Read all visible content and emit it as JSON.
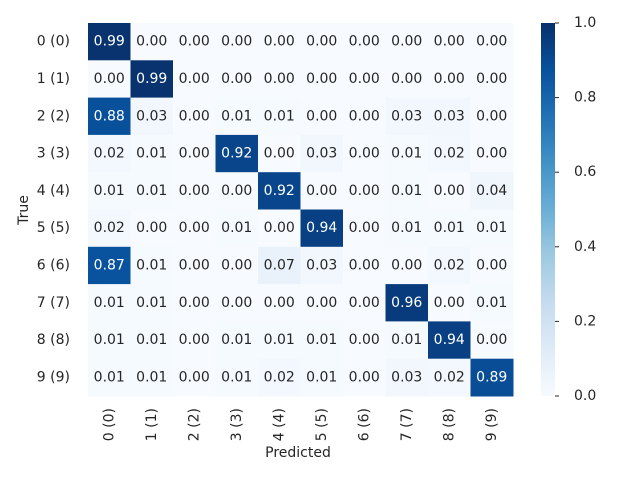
{
  "chart_data": {
    "type": "heatmap",
    "x_categories": [
      "0 (0)",
      "1 (1)",
      "2 (2)",
      "3 (3)",
      "4 (4)",
      "5 (5)",
      "6 (6)",
      "7 (7)",
      "8 (8)",
      "9 (9)"
    ],
    "y_categories": [
      "0 (0)",
      "1 (1)",
      "2 (2)",
      "3 (3)",
      "4 (4)",
      "5 (5)",
      "6 (6)",
      "7 (7)",
      "8 (8)",
      "9 (9)"
    ],
    "xlabel": "Predicted",
    "ylabel": "True",
    "values": [
      [
        0.99,
        0,
        0,
        0,
        0,
        0,
        0,
        0,
        0,
        0
      ],
      [
        0,
        0.99,
        0,
        0,
        0,
        0,
        0,
        0,
        0,
        0
      ],
      [
        0.88,
        0.03,
        0,
        0.01,
        0.01,
        0,
        0,
        0.03,
        0.03,
        0
      ],
      [
        0.02,
        0.01,
        0,
        0.92,
        0,
        0.03,
        0,
        0.01,
        0.02,
        0
      ],
      [
        0.01,
        0.01,
        0,
        0,
        0.92,
        0,
        0,
        0.01,
        0,
        0.04
      ],
      [
        0.02,
        0,
        0,
        0.01,
        0,
        0.94,
        0,
        0.01,
        0.01,
        0.01
      ],
      [
        0.87,
        0.01,
        0,
        0,
        0.07,
        0.03,
        0,
        0,
        0.02,
        0
      ],
      [
        0.01,
        0.01,
        0,
        0,
        0,
        0,
        0,
        0.96,
        0,
        0.01
      ],
      [
        0.01,
        0.01,
        0,
        0.01,
        0.01,
        0.01,
        0,
        0.01,
        0.94,
        0
      ],
      [
        0.01,
        0.01,
        0,
        0.01,
        0.02,
        0.01,
        0,
        0.03,
        0.02,
        0.89
      ]
    ],
    "value_labels": [
      [
        "0.99",
        "0.00",
        "0.00",
        "0.00",
        "0.00",
        "0.00",
        "0.00",
        "0.00",
        "0.00",
        "0.00"
      ],
      [
        "0.00",
        "0.99",
        "0.00",
        "0.00",
        "0.00",
        "0.00",
        "0.00",
        "0.00",
        "0.00",
        "0.00"
      ],
      [
        "0.88",
        "0.03",
        "0.00",
        "0.01",
        "0.01",
        "0.00",
        "0.00",
        "0.03",
        "0.03",
        "0.00"
      ],
      [
        "0.02",
        "0.01",
        "0.00",
        "0.92",
        "0.00",
        "0.03",
        "0.00",
        "0.01",
        "0.02",
        "0.00"
      ],
      [
        "0.01",
        "0.01",
        "0.00",
        "0.00",
        "0.92",
        "0.00",
        "0.00",
        "0.01",
        "0.00",
        "0.04"
      ],
      [
        "0.02",
        "0.00",
        "0.00",
        "0.01",
        "0.00",
        "0.94",
        "0.00",
        "0.01",
        "0.01",
        "0.01"
      ],
      [
        "0.87",
        "0.01",
        "0.00",
        "0.00",
        "0.07",
        "0.03",
        "0.00",
        "0.00",
        "0.02",
        "0.00"
      ],
      [
        "0.01",
        "0.01",
        "0.00",
        "0.00",
        "0.00",
        "0.00",
        "0.00",
        "0.96",
        "0.00",
        "0.01"
      ],
      [
        "0.01",
        "0.01",
        "0.00",
        "0.01",
        "0.01",
        "0.01",
        "0.00",
        "0.01",
        "0.94",
        "0.00"
      ],
      [
        "0.01",
        "0.01",
        "0.00",
        "0.01",
        "0.02",
        "0.01",
        "0.00",
        "0.03",
        "0.02",
        "0.89"
      ]
    ],
    "zlim": [
      0,
      1
    ],
    "zticks": [
      {
        "value": 0,
        "label": "0.0"
      },
      {
        "value": 0.2,
        "label": "0.2"
      },
      {
        "value": 0.4,
        "label": "0.4"
      },
      {
        "value": 0.6,
        "label": "0.6"
      },
      {
        "value": 0.8,
        "label": "0.8"
      },
      {
        "value": 1,
        "label": "1.0"
      }
    ],
    "colormap": [
      "#f7fbff",
      "#deebf7",
      "#c6dbef",
      "#9ecae1",
      "#6baed6",
      "#4292c6",
      "#2171b5",
      "#08519c",
      "#08306b"
    ]
  }
}
